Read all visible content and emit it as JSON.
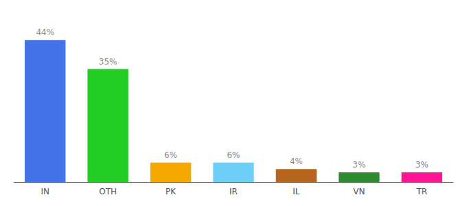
{
  "chart_data": {
    "type": "bar",
    "categories": [
      "IN",
      "OTH",
      "PK",
      "IR",
      "IL",
      "VN",
      "TR"
    ],
    "values": [
      44,
      35,
      6,
      6,
      4,
      3,
      3
    ],
    "value_labels": [
      "44%",
      "35%",
      "6%",
      "6%",
      "4%",
      "3%",
      "3%"
    ],
    "colors": [
      "#4472e8",
      "#22cc22",
      "#f5a800",
      "#6ecff6",
      "#b5651d",
      "#2d8a2d",
      "#ff1493"
    ],
    "ylim": [
      0,
      50
    ],
    "data_labels": true,
    "tick_labels": "x",
    "grid": false
  }
}
